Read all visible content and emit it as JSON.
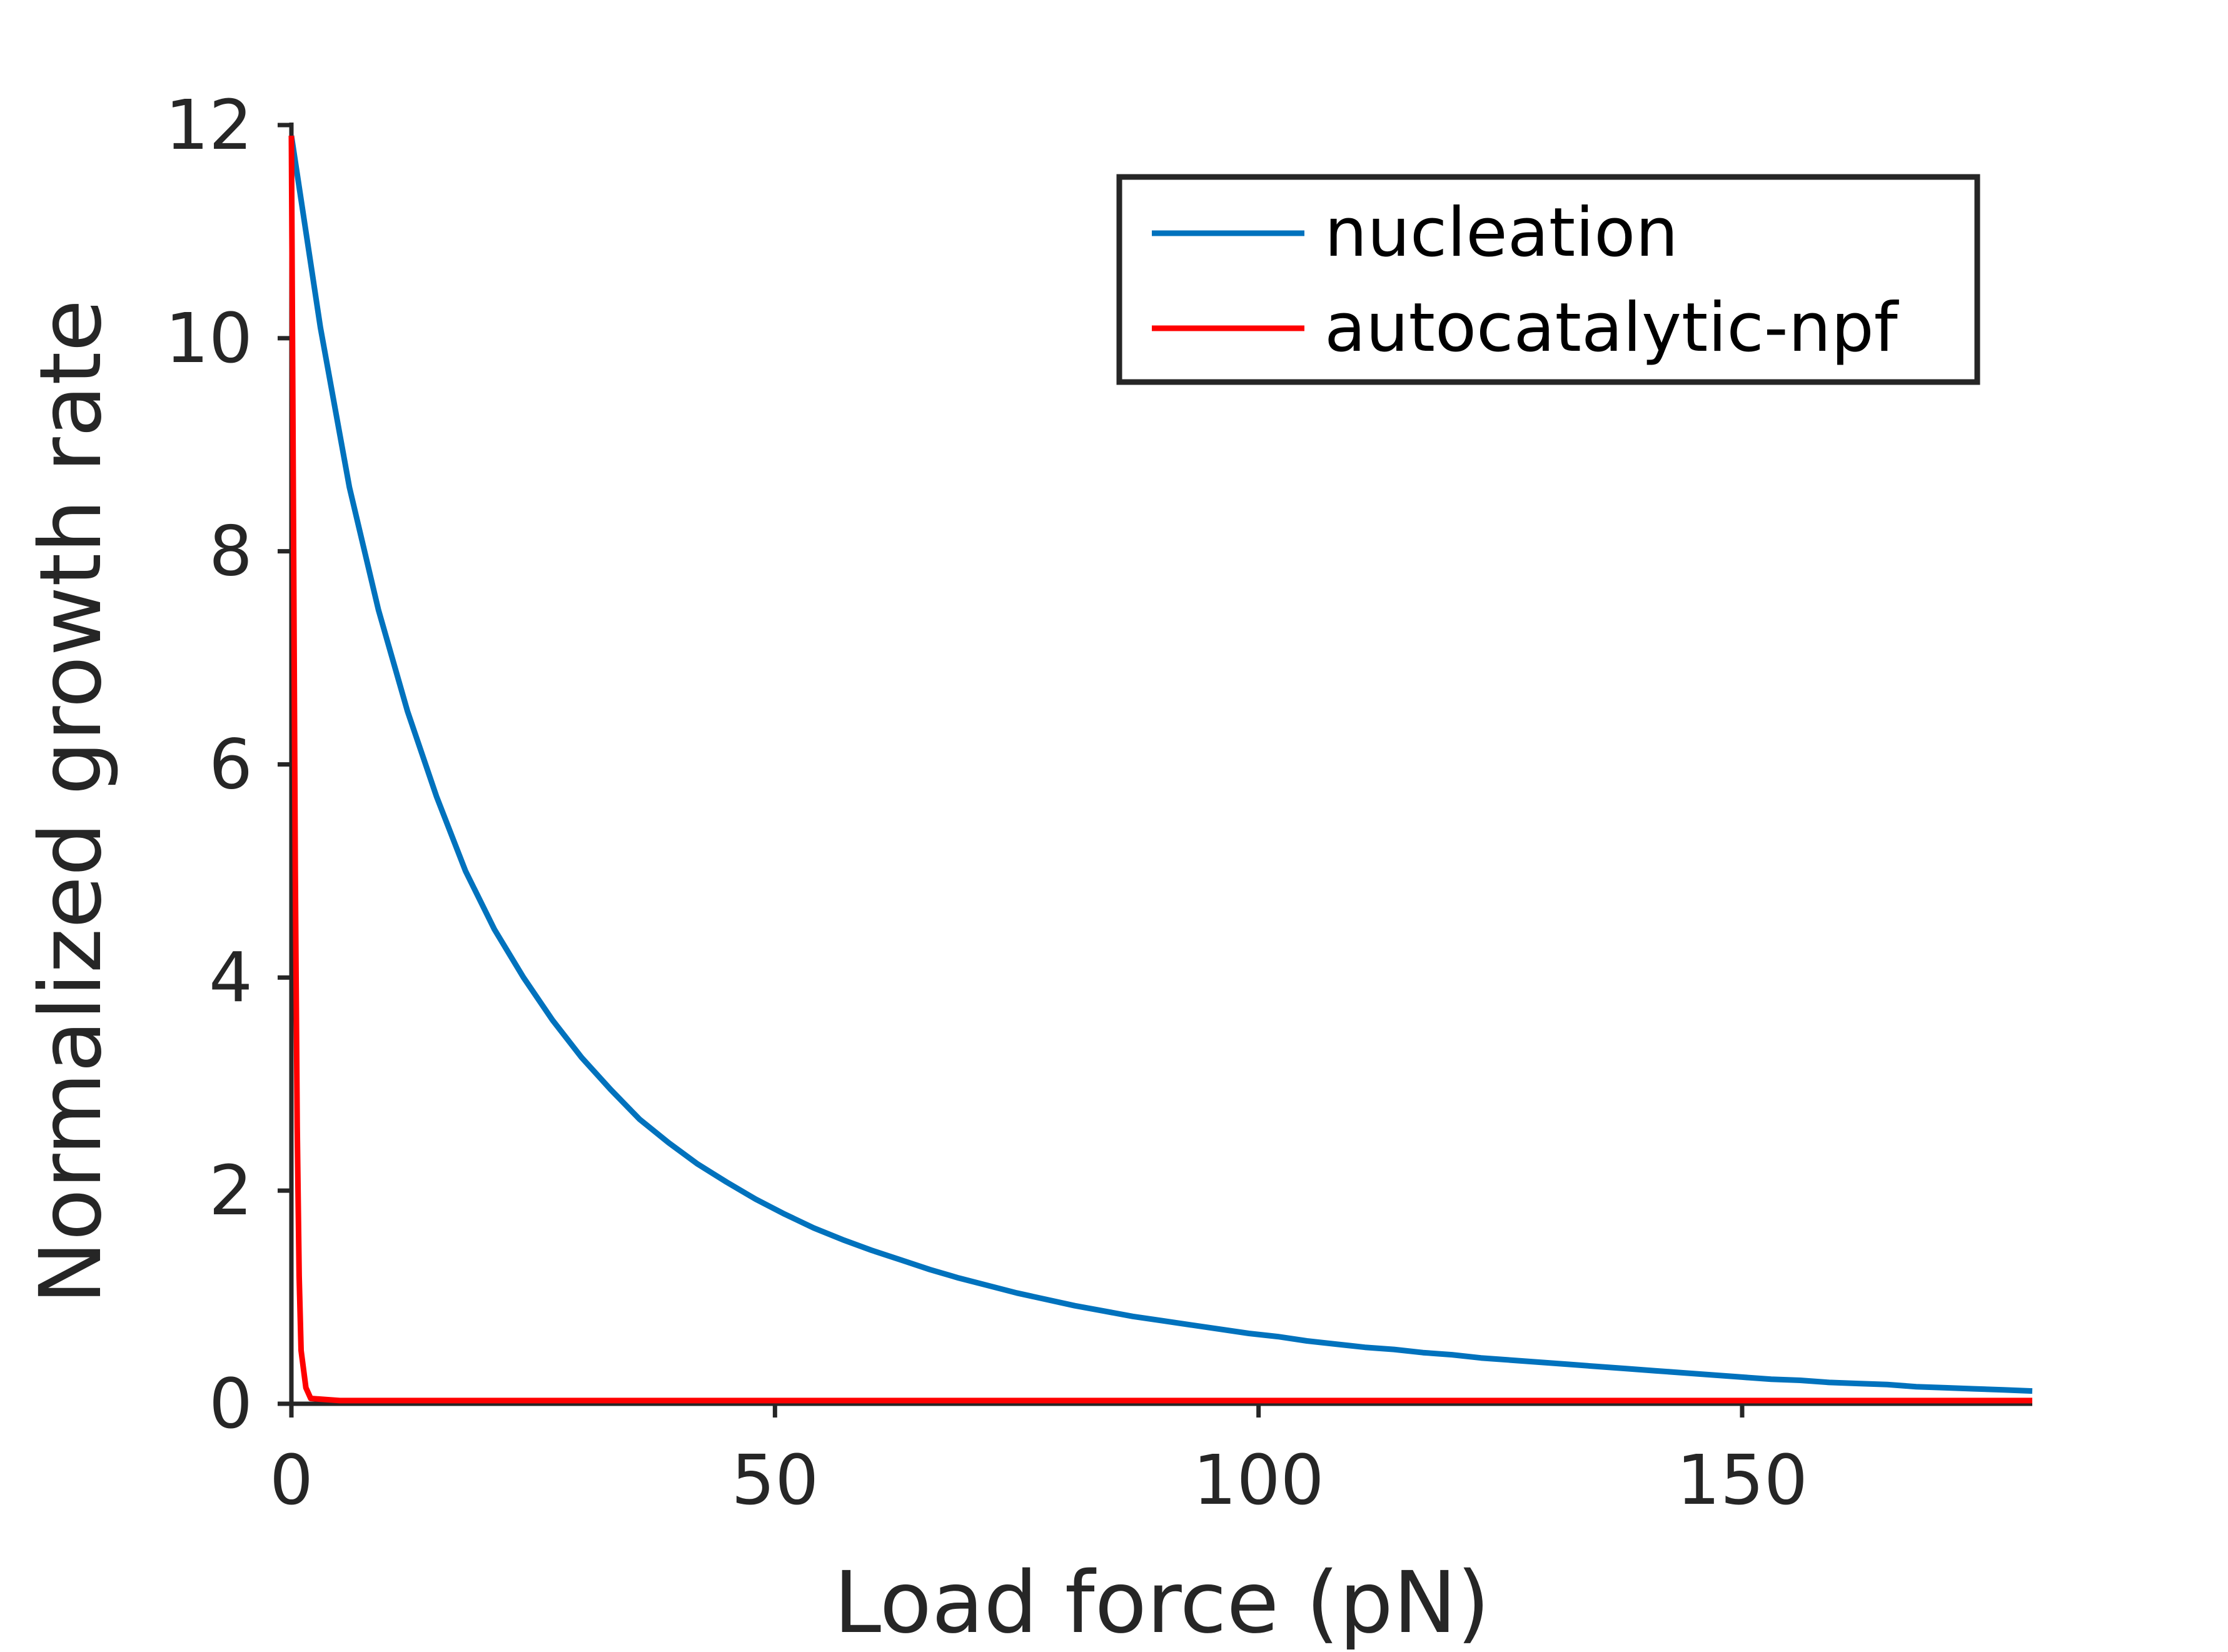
{
  "chart_data": {
    "type": "line",
    "title": "",
    "xlabel": "Load force (pN)",
    "ylabel": "Normalized growth rate",
    "xlim": [
      0,
      180
    ],
    "ylim": [
      0,
      12
    ],
    "xticks": [
      0,
      50,
      100,
      150
    ],
    "xtick_labels": [
      "0",
      "50",
      "100",
      "150"
    ],
    "yticks": [
      0,
      2,
      4,
      6,
      8,
      10,
      12
    ],
    "ytick_labels": [
      "0",
      "2",
      "4",
      "6",
      "8",
      "10",
      "12"
    ],
    "grid": false,
    "legend_position": "top-right",
    "series": [
      {
        "name": "nucleation",
        "color": "#0072BD",
        "x": [
          0,
          3,
          6,
          9,
          12,
          15,
          18,
          21,
          24,
          27,
          30,
          33,
          36,
          39,
          42,
          45,
          48,
          51,
          54,
          57,
          60,
          63,
          66,
          69,
          72,
          75,
          78,
          81,
          84,
          87,
          90,
          93,
          96,
          99,
          102,
          105,
          108,
          111,
          114,
          117,
          120,
          123,
          126,
          129,
          132,
          135,
          138,
          141,
          144,
          147,
          150,
          153,
          156,
          159,
          162,
          165,
          168,
          171,
          174,
          177,
          180
        ],
        "y": [
          11.9,
          10.1,
          8.6,
          7.45,
          6.5,
          5.7,
          5.0,
          4.45,
          4.0,
          3.6,
          3.25,
          2.95,
          2.67,
          2.45,
          2.25,
          2.08,
          1.92,
          1.78,
          1.65,
          1.54,
          1.44,
          1.35,
          1.26,
          1.18,
          1.11,
          1.04,
          0.98,
          0.92,
          0.87,
          0.82,
          0.78,
          0.74,
          0.7,
          0.66,
          0.63,
          0.59,
          0.56,
          0.53,
          0.51,
          0.48,
          0.46,
          0.43,
          0.41,
          0.39,
          0.37,
          0.35,
          0.33,
          0.31,
          0.29,
          0.27,
          0.25,
          0.23,
          0.22,
          0.2,
          0.19,
          0.18,
          0.16,
          0.15,
          0.14,
          0.13,
          0.12
        ]
      },
      {
        "name": "autocatalytic-npf",
        "color": "#FF0000",
        "x": [
          0,
          0.2,
          0.4,
          0.6,
          0.8,
          1.0,
          1.5,
          2.0,
          5,
          180
        ],
        "y": [
          11.9,
          8.5,
          5.0,
          2.6,
          1.2,
          0.5,
          0.15,
          0.05,
          0.03,
          0.03
        ]
      }
    ]
  }
}
